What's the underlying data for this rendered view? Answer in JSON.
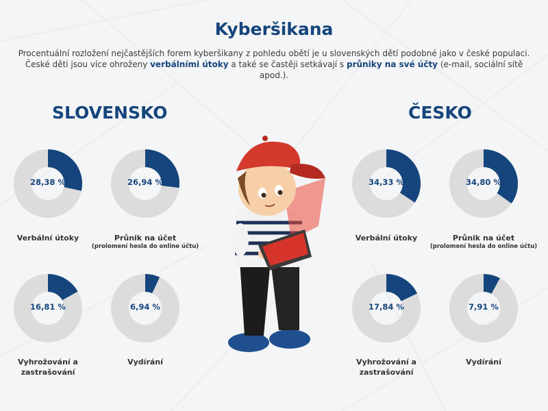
{
  "page": {
    "title": "Kyberšikana",
    "intro_line1": "Procentuální rozložení nejčastějších forem kyberšikany z pohledu obětí je u slovenských dětí podobné jako v české populaci.",
    "intro_line2_a": "České děti jsou více ohroženy ",
    "intro_line2_b": "verbálními útoky",
    "intro_line2_c": " a také se častěji setkávají s ",
    "intro_line2_d": "průniky na své účty",
    "intro_line2_e": " (e-mail, sociální sítě apod.)."
  },
  "colors": {
    "accent": "#15457c",
    "track": "#dcdcdc",
    "background": "#f4f5f6"
  },
  "chart_data": [
    {
      "type": "pie",
      "title": "SLOVENSKO",
      "series": [
        {
          "name": "Verbální útoky",
          "value": 28.38,
          "label": "28,38 %"
        },
        {
          "name": "Průnik na účet",
          "subnote": "(prolomení hesla do online účtu)",
          "value": 26.94,
          "label": "26,94 %"
        },
        {
          "name": "Vyhrožování a zastrašování",
          "value": 16.81,
          "label": "16,81 %"
        },
        {
          "name": "Vydírání",
          "value": 6.94,
          "label": "6,94 %"
        }
      ]
    },
    {
      "type": "pie",
      "title": "ČESKO",
      "series": [
        {
          "name": "Verbální útoky",
          "value": 34.33,
          "label": "34,33 %"
        },
        {
          "name": "Průnik na účet",
          "subnote": "(prolomení hesla do online účtu)",
          "value": 34.8,
          "label": "34,80 %"
        },
        {
          "name": "Vyhrožování a zastrašování",
          "value": 17.84,
          "label": "17,84 %"
        },
        {
          "name": "Vydírání",
          "value": 7.91,
          "label": "7,91 %"
        }
      ]
    }
  ]
}
